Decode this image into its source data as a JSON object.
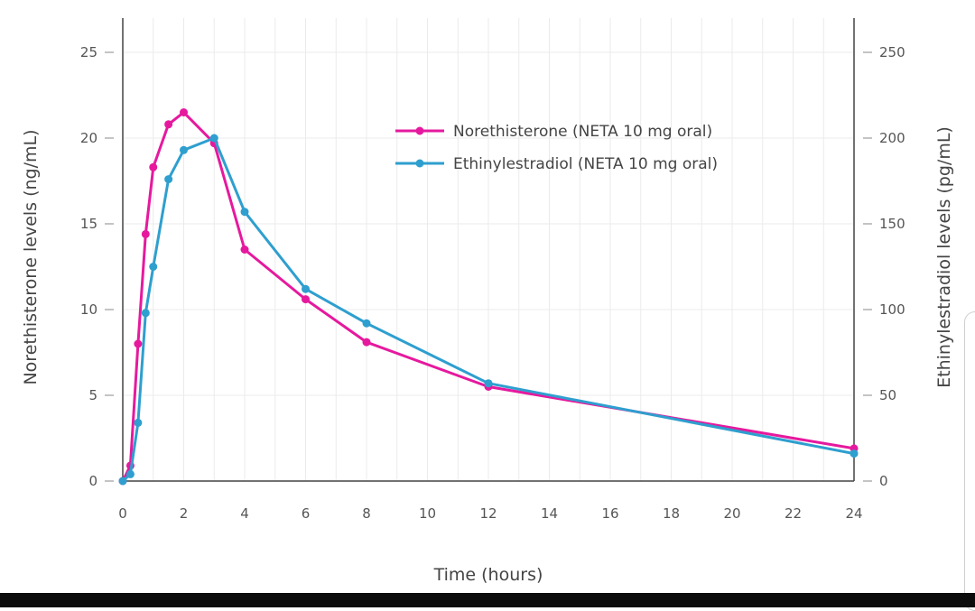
{
  "chart_data": {
    "type": "line",
    "xlabel": "Time (hours)",
    "ylabel_left": "Norethisterone levels (ng/mL)",
    "ylabel_right": "Ethinylestradiol levels (pg/mL)",
    "xlim": [
      0,
      24
    ],
    "ylim_left": [
      0,
      27
    ],
    "ylim_right": [
      0,
      270
    ],
    "x_ticks": [
      0,
      2,
      4,
      6,
      8,
      10,
      12,
      14,
      16,
      18,
      20,
      22,
      24
    ],
    "y_left_ticks": [
      0,
      5,
      10,
      15,
      20,
      25
    ],
    "y_right_ticks": [
      0,
      50,
      100,
      150,
      200,
      250
    ],
    "grid": true,
    "legend_position": "top-right",
    "series": [
      {
        "name": "Norethisterone (NETA 10 mg oral)",
        "axis": "left",
        "color": "#e6199e",
        "x": [
          0,
          0.25,
          0.5,
          0.75,
          1,
          1.5,
          2,
          3,
          4,
          6,
          8,
          12,
          24
        ],
        "values": [
          0,
          0.9,
          8.0,
          14.4,
          18.3,
          20.8,
          21.5,
          19.7,
          13.5,
          10.6,
          8.1,
          5.5,
          1.9
        ]
      },
      {
        "name": "Ethinylestradiol (NETA 10 mg oral)",
        "axis": "right",
        "color": "#2e9fcf",
        "x": [
          0,
          0.25,
          0.5,
          0.75,
          1,
          1.5,
          2,
          3,
          4,
          6,
          8,
          12,
          24
        ],
        "values": [
          0,
          4,
          34,
          98,
          125,
          176,
          193,
          200,
          157,
          112,
          92,
          57,
          16
        ]
      }
    ]
  }
}
